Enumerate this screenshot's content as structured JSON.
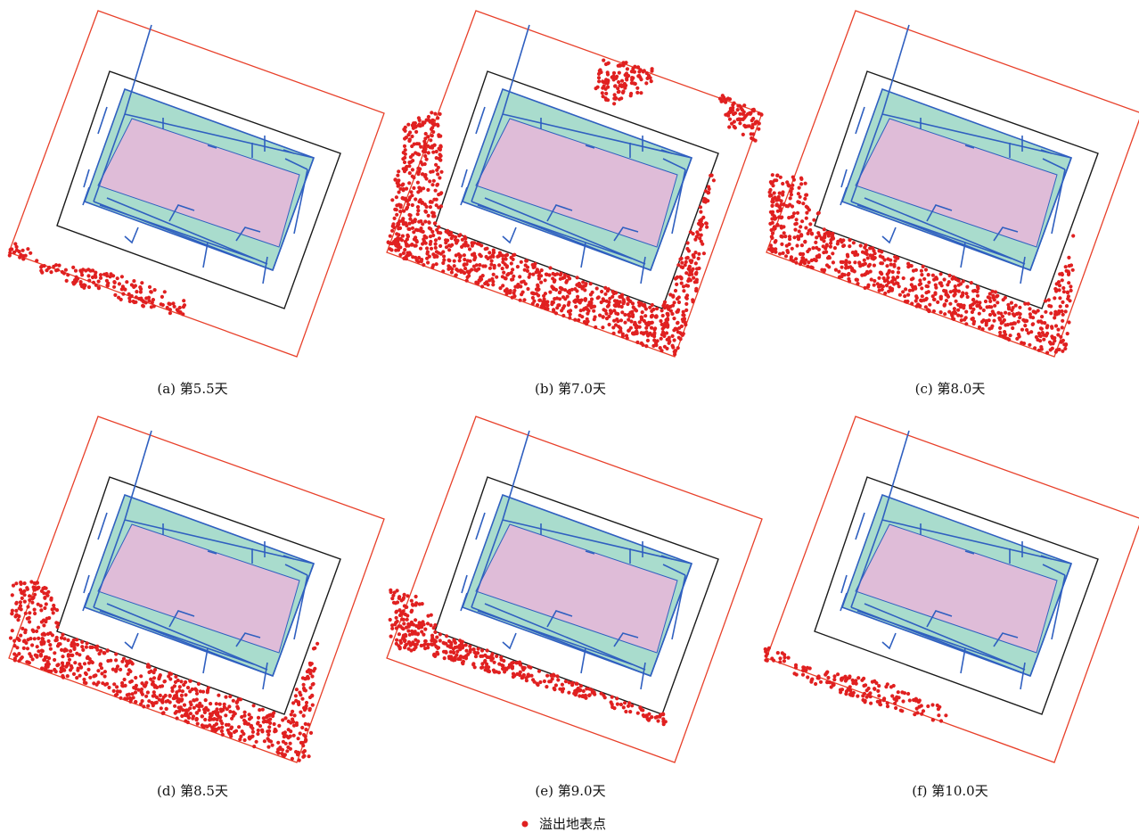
{
  "panels": [
    {
      "label": "(a) 第5.5天",
      "overflow": "low"
    },
    {
      "label": "(b) 第7.0天",
      "overflow": "full"
    },
    {
      "label": "(c) 第8.0天",
      "overflow": "high"
    },
    {
      "label": "(d) 第8.5天",
      "overflow": "high"
    },
    {
      "label": "(e) 第9.0天",
      "overflow": "medium"
    },
    {
      "label": "(f) 第10.0天",
      "overflow": "low"
    }
  ],
  "legend": {
    "marker": "red-dot",
    "label": "溢出地表点"
  },
  "colors": {
    "outer_boundary": "#e8402a",
    "frame": "#1a1a1a",
    "zone": "#a9dccd",
    "core": "#dfbcd8",
    "pipe": "#2f5fc0",
    "overflow_point": "#e02020"
  }
}
